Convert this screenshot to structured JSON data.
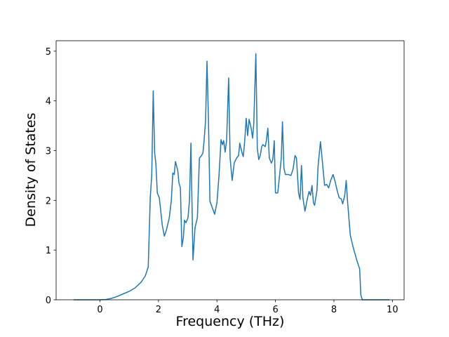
{
  "chart_data": {
    "type": "line",
    "xlabel": "Frequency (THz)",
    "ylabel": "Density of States",
    "color": "#1f77b4",
    "x": [
      -0.9,
      0,
      0.2,
      0.4,
      0.6,
      0.8,
      1.0,
      1.2,
      1.4,
      1.55,
      1.65,
      1.72,
      1.77,
      1.82,
      1.87,
      1.91,
      1.96,
      2.03,
      2.13,
      2.2,
      2.27,
      2.37,
      2.44,
      2.49,
      2.54,
      2.58,
      2.66,
      2.7,
      2.75,
      2.8,
      2.85,
      2.89,
      2.94,
      3.01,
      3.06,
      3.11,
      3.18,
      3.25,
      3.33,
      3.4,
      3.47,
      3.52,
      3.56,
      3.61,
      3.66,
      3.71,
      3.76,
      3.83,
      3.92,
      4.0,
      4.07,
      4.14,
      4.19,
      4.23,
      4.28,
      4.33,
      4.4,
      4.45,
      4.52,
      4.59,
      4.67,
      4.74,
      4.78,
      4.86,
      4.9,
      4.95,
      5.0,
      5.05,
      5.1,
      5.17,
      5.22,
      5.26,
      5.33,
      5.38,
      5.43,
      5.48,
      5.53,
      5.57,
      5.65,
      5.69,
      5.74,
      5.79,
      5.86,
      5.91,
      5.96,
      6.0,
      6.08,
      6.15,
      6.2,
      6.24,
      6.29,
      6.34,
      6.44,
      6.53,
      6.6,
      6.67,
      6.72,
      6.79,
      6.84,
      6.89,
      6.94,
      7.01,
      7.08,
      7.15,
      7.2,
      7.25,
      7.3,
      7.34,
      7.42,
      7.46,
      7.54,
      7.61,
      7.68,
      7.75,
      7.82,
      7.89,
      7.97,
      8.04,
      8.11,
      8.18,
      8.25,
      8.3,
      8.37,
      8.42,
      8.47,
      8.56,
      8.66,
      8.78,
      8.88,
      8.92,
      8.97,
      9.9
    ],
    "values": [
      0,
      0,
      0.005,
      0.03,
      0.07,
      0.12,
      0.17,
      0.24,
      0.35,
      0.48,
      0.66,
      2.07,
      2.5,
      4.2,
      2.95,
      2.75,
      2.15,
      2.05,
      1.5,
      1.28,
      1.4,
      1.65,
      2.0,
      2.55,
      2.52,
      2.78,
      2.6,
      2.35,
      2.25,
      1.07,
      1.25,
      1.6,
      1.55,
      1.65,
      2.0,
      3.15,
      0.8,
      1.45,
      1.65,
      2.85,
      2.9,
      2.95,
      3.2,
      3.6,
      4.8,
      3.6,
      1.98,
      1.87,
      1.72,
      1.95,
      2.5,
      3.22,
      3.12,
      3.2,
      2.97,
      3.2,
      4.46,
      2.85,
      2.4,
      2.75,
      2.85,
      2.9,
      3.15,
      2.95,
      2.88,
      3.2,
      3.65,
      3.3,
      3.63,
      3.45,
      3.25,
      3.55,
      4.95,
      3.05,
      2.82,
      2.9,
      3.08,
      3.12,
      3.08,
      3.2,
      3.45,
      2.85,
      2.75,
      2.82,
      3.2,
      2.15,
      2.15,
      2.55,
      2.85,
      3.58,
      2.65,
      2.52,
      2.52,
      2.5,
      2.62,
      2.9,
      2.85,
      2.15,
      2.02,
      2.7,
      2.05,
      1.78,
      2.0,
      2.18,
      2.1,
      2.3,
      1.95,
      1.9,
      2.2,
      2.7,
      3.18,
      2.75,
      2.3,
      2.32,
      2.25,
      2.4,
      2.52,
      2.38,
      2.2,
      2.05,
      2.03,
      1.93,
      2.1,
      2.4,
      1.95,
      1.3,
      1.05,
      0.8,
      0.62,
      0.1,
      0,
      0
    ],
    "xlim": [
      -1.5,
      10.4
    ],
    "xticks": [
      0,
      2,
      4,
      6,
      8,
      10
    ],
    "ylim": [
      0,
      5.21
    ],
    "yticks": [
      0,
      1,
      2,
      3,
      4,
      5
    ]
  }
}
